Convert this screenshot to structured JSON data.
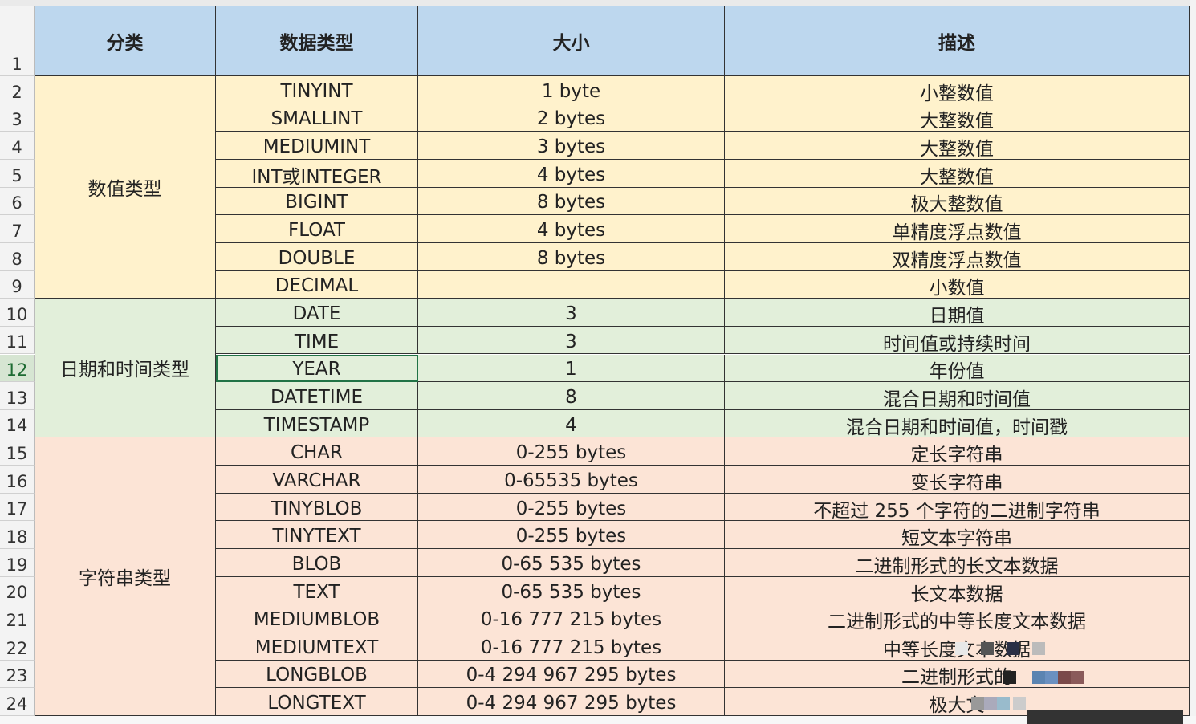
{
  "header": [
    "分类",
    "数据类型",
    "大小",
    "描述"
  ],
  "row_numbers": [
    1,
    2,
    3,
    4,
    5,
    6,
    7,
    8,
    9,
    10,
    11,
    12,
    13,
    14,
    15,
    16,
    17,
    18,
    19,
    20,
    21,
    22,
    23,
    24
  ],
  "groups": [
    {
      "label": "数值类型",
      "color": "#fff2cc",
      "rows": [
        {
          "type": "TINYINT",
          "size": "1 byte",
          "desc": "小整数值"
        },
        {
          "type": "SMALLINT",
          "size": "2 bytes",
          "desc": "大整数值"
        },
        {
          "type": "MEDIUMINT",
          "size": "3 bytes",
          "desc": "大整数值"
        },
        {
          "type": "INT或INTEGER",
          "size": "4 bytes",
          "desc": "大整数值"
        },
        {
          "type": "BIGINT",
          "size": "8 bytes",
          "desc": "极大整数值"
        },
        {
          "type": "FLOAT",
          "size": "4 bytes",
          "desc": "单精度浮点数值"
        },
        {
          "type": "DOUBLE",
          "size": "8 bytes",
          "desc": "双精度浮点数值"
        },
        {
          "type": "DECIMAL",
          "desc": "小数值"
        }
      ]
    },
    {
      "label": "日期和时间类型",
      "color": "#e2efda",
      "rows": [
        {
          "type": "DATE",
          "size": "3",
          "desc": "日期值"
        },
        {
          "type": "TIME",
          "size": "3",
          "desc": "时间值或持续时间"
        },
        {
          "type": "YEAR",
          "size": "1",
          "desc": "年份值"
        },
        {
          "type": "DATETIME",
          "size": "8",
          "desc": "混合日期和时间值"
        },
        {
          "type": "TIMESTAMP",
          "size": "4",
          "desc": "混合日期和时间值，时间戳"
        }
      ]
    },
    {
      "label": "字符串类型",
      "color": "#fce4d6",
      "rows": [
        {
          "type": "CHAR",
          "size": "0-255 bytes",
          "desc": "定长字符串"
        },
        {
          "type": "VARCHAR",
          "size": "0-65535 bytes",
          "desc": "变长字符串"
        },
        {
          "type": "TINYBLOB",
          "size": "0-255 bytes",
          "desc": "不超过 255 个字符的二进制字符串"
        },
        {
          "type": "TINYTEXT",
          "size": "0-255 bytes",
          "desc": "短文本字符串"
        },
        {
          "type": "BLOB",
          "size": "0-65 535 bytes",
          "desc": "二进制形式的长文本数据"
        },
        {
          "type": "TEXT",
          "size": "0-65 535 bytes",
          "desc": "长文本数据"
        },
        {
          "type": "MEDIUMBLOB",
          "size": "0-16 777 215 bytes",
          "desc": "二进制形式的中等长度文本数据"
        },
        {
          "type": "MEDIUMTEXT",
          "size": "0-16 777 215 bytes",
          "desc": "中等长度文本数据"
        },
        {
          "type": "LONGBLOB",
          "size": "0-4 294 967 295 bytes",
          "desc": "二进制形式的"
        },
        {
          "type": "LONGTEXT",
          "size": "0-4 294 967 295 bytes",
          "desc": "极大文"
        }
      ]
    }
  ]
}
